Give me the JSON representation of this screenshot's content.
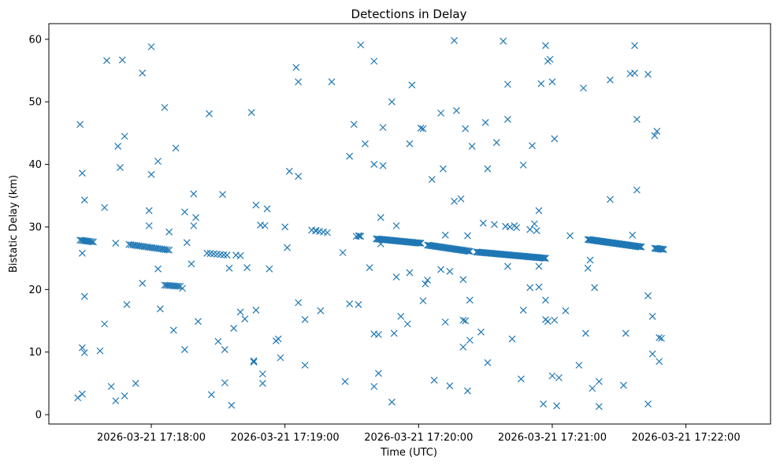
{
  "chart_data": {
    "type": "scatter",
    "title": "Detections in Delay",
    "xlabel": "Time (UTC)",
    "ylabel": "Bistatic Delay (km)",
    "x_ticks": [
      "2026-03-21 17:18:00",
      "2026-03-21 17:19:00",
      "2026-03-21 17:20:00",
      "2026-03-21 17:21:00",
      "2026-03-21 17:22:00"
    ],
    "y_ticks": [
      0,
      10,
      20,
      30,
      40,
      50,
      60
    ],
    "xlim": [
      "2026-03-21 17:17:14",
      "2026-03-21 17:22:38"
    ],
    "ylim": [
      -1.5,
      62.5
    ],
    "grid": false,
    "marker": "x",
    "color": "#1f77b4",
    "series": [
      {
        "points": [
          [
            "2026-03-21 17:17:27",
            2.7
          ],
          [
            "2026-03-21 17:17:29",
            3.3
          ],
          [
            "2026-03-21 17:17:29",
            10.7
          ],
          [
            "2026-03-21 17:17:30",
            9.9
          ],
          [
            "2026-03-21 17:17:30",
            18.9
          ],
          [
            "2026-03-21 17:17:29",
            25.8
          ],
          [
            "2026-03-21 17:17:30",
            34.3
          ],
          [
            "2026-03-21 17:17:29",
            38.6
          ],
          [
            "2026-03-21 17:17:28",
            46.4
          ],
          [
            "2026-03-21 17:17:37",
            10.2
          ],
          [
            "2026-03-21 17:17:39",
            14.5
          ],
          [
            "2026-03-21 17:17:39",
            33.1
          ],
          [
            "2026-03-21 17:17:40",
            56.6
          ],
          [
            "2026-03-21 17:17:42",
            4.5
          ],
          [
            "2026-03-21 17:17:44",
            2.2
          ],
          [
            "2026-03-21 17:17:44",
            27.4
          ],
          [
            "2026-03-21 17:17:45",
            42.9
          ],
          [
            "2026-03-21 17:17:46",
            39.5
          ],
          [
            "2026-03-21 17:17:47",
            56.7
          ],
          [
            "2026-03-21 17:17:48",
            44.5
          ],
          [
            "2026-03-21 17:17:48",
            3.0
          ],
          [
            "2026-03-21 17:17:49",
            17.6
          ],
          [
            "2026-03-21 17:17:53",
            5.0
          ],
          [
            "2026-03-21 17:17:56",
            21.0
          ],
          [
            "2026-03-21 17:17:56",
            54.6
          ],
          [
            "2026-03-21 17:17:59",
            32.6
          ],
          [
            "2026-03-21 17:17:59",
            30.2
          ],
          [
            "2026-03-21 17:18:00",
            38.4
          ],
          [
            "2026-03-21 17:18:00",
            58.8
          ],
          [
            "2026-03-21 17:18:03",
            23.3
          ],
          [
            "2026-03-21 17:18:03",
            40.5
          ],
          [
            "2026-03-21 17:18:04",
            16.9
          ],
          [
            "2026-03-21 17:18:06",
            49.1
          ],
          [
            "2026-03-21 17:18:08",
            29.2
          ],
          [
            "2026-03-21 17:18:10",
            13.5
          ],
          [
            "2026-03-21 17:18:11",
            42.6
          ],
          [
            "2026-03-21 17:18:14",
            20.2
          ],
          [
            "2026-03-21 17:18:15",
            32.4
          ],
          [
            "2026-03-21 17:18:15",
            10.4
          ],
          [
            "2026-03-21 17:18:16",
            27.5
          ],
          [
            "2026-03-21 17:18:18",
            24.1
          ],
          [
            "2026-03-21 17:18:19",
            35.3
          ],
          [
            "2026-03-21 17:18:19",
            30.2
          ],
          [
            "2026-03-21 17:18:20",
            31.5
          ],
          [
            "2026-03-21 17:18:21",
            14.9
          ],
          [
            "2026-03-21 17:18:26",
            48.1
          ],
          [
            "2026-03-21 17:18:27",
            3.2
          ],
          [
            "2026-03-21 17:18:30",
            11.7
          ],
          [
            "2026-03-21 17:18:32",
            35.2
          ],
          [
            "2026-03-21 17:18:33",
            10.4
          ],
          [
            "2026-03-21 17:18:33",
            5.1
          ],
          [
            "2026-03-21 17:18:35",
            23.4
          ],
          [
            "2026-03-21 17:18:36",
            1.5
          ],
          [
            "2026-03-21 17:18:37",
            13.8
          ],
          [
            "2026-03-21 17:18:40",
            16.4
          ],
          [
            "2026-03-21 17:18:42",
            15.3
          ],
          [
            "2026-03-21 17:18:43",
            23.5
          ],
          [
            "2026-03-21 17:18:45",
            48.3
          ],
          [
            "2026-03-21 17:18:46",
            8.6
          ],
          [
            "2026-03-21 17:18:46",
            8.4
          ],
          [
            "2026-03-21 17:18:47",
            16.7
          ],
          [
            "2026-03-21 17:18:47",
            33.5
          ],
          [
            "2026-03-21 17:18:49",
            30.3
          ],
          [
            "2026-03-21 17:18:50",
            5.0
          ],
          [
            "2026-03-21 17:18:50",
            6.5
          ],
          [
            "2026-03-21 17:18:51",
            30.2
          ],
          [
            "2026-03-21 17:18:52",
            32.9
          ],
          [
            "2026-03-21 17:18:53",
            23.3
          ],
          [
            "2026-03-21 17:18:56",
            11.8
          ],
          [
            "2026-03-21 17:18:57",
            12.1
          ],
          [
            "2026-03-21 17:18:58",
            9.1
          ],
          [
            "2026-03-21 17:19:00",
            30.0
          ],
          [
            "2026-03-21 17:19:01",
            26.7
          ],
          [
            "2026-03-21 17:19:02",
            38.9
          ],
          [
            "2026-03-21 17:19:05",
            55.5
          ],
          [
            "2026-03-21 17:19:06",
            53.2
          ],
          [
            "2026-03-21 17:19:06",
            17.9
          ],
          [
            "2026-03-21 17:19:06",
            38.1
          ],
          [
            "2026-03-21 17:19:09",
            7.9
          ],
          [
            "2026-03-21 17:19:09",
            15.2
          ],
          [
            "2026-03-21 17:19:14",
            29.4
          ],
          [
            "2026-03-21 17:19:16",
            16.6
          ],
          [
            "2026-03-21 17:19:21",
            53.2
          ],
          [
            "2026-03-21 17:19:26",
            25.9
          ],
          [
            "2026-03-21 17:19:27",
            5.3
          ],
          [
            "2026-03-21 17:19:29",
            41.3
          ],
          [
            "2026-03-21 17:19:29",
            17.7
          ],
          [
            "2026-03-21 17:19:31",
            46.4
          ],
          [
            "2026-03-21 17:19:32",
            28.5
          ],
          [
            "2026-03-21 17:19:33",
            17.6
          ],
          [
            "2026-03-21 17:19:34",
            59.1
          ],
          [
            "2026-03-21 17:19:36",
            43.3
          ],
          [
            "2026-03-21 17:19:38",
            23.5
          ],
          [
            "2026-03-21 17:19:40",
            40.0
          ],
          [
            "2026-03-21 17:19:40",
            4.5
          ],
          [
            "2026-03-21 17:19:40",
            56.5
          ],
          [
            "2026-03-21 17:19:40",
            12.9
          ],
          [
            "2026-03-21 17:19:42",
            12.8
          ],
          [
            "2026-03-21 17:19:42",
            6.6
          ],
          [
            "2026-03-21 17:19:43",
            31.5
          ],
          [
            "2026-03-21 17:19:43",
            27.3
          ],
          [
            "2026-03-21 17:19:44",
            39.8
          ],
          [
            "2026-03-21 17:19:44",
            45.9
          ],
          [
            "2026-03-21 17:19:48",
            2.0
          ],
          [
            "2026-03-21 17:19:48",
            50.0
          ],
          [
            "2026-03-21 17:19:49",
            13.0
          ],
          [
            "2026-03-21 17:19:50",
            22.0
          ],
          [
            "2026-03-21 17:19:50",
            30.2
          ],
          [
            "2026-03-21 17:19:52",
            15.7
          ],
          [
            "2026-03-21 17:19:55",
            14.5
          ],
          [
            "2026-03-21 17:19:56",
            43.3
          ],
          [
            "2026-03-21 17:19:56",
            22.7
          ],
          [
            "2026-03-21 17:19:57",
            52.7
          ],
          [
            "2026-03-21 17:20:01",
            45.8
          ],
          [
            "2026-03-21 17:20:02",
            45.7
          ],
          [
            "2026-03-21 17:20:02",
            18.2
          ],
          [
            "2026-03-21 17:20:03",
            20.9
          ],
          [
            "2026-03-21 17:20:04",
            21.5
          ],
          [
            "2026-03-21 17:20:06",
            37.6
          ],
          [
            "2026-03-21 17:20:07",
            5.5
          ],
          [
            "2026-03-21 17:20:10",
            48.2
          ],
          [
            "2026-03-21 17:20:10",
            23.2
          ],
          [
            "2026-03-21 17:20:11",
            39.3
          ],
          [
            "2026-03-21 17:20:12",
            14.8
          ],
          [
            "2026-03-21 17:20:12",
            28.7
          ],
          [
            "2026-03-21 17:20:14",
            22.9
          ],
          [
            "2026-03-21 17:20:14",
            4.6
          ],
          [
            "2026-03-21 17:20:16",
            59.8
          ],
          [
            "2026-03-21 17:20:16",
            34.1
          ],
          [
            "2026-03-21 17:20:17",
            48.6
          ],
          [
            "2026-03-21 17:20:19",
            34.5
          ],
          [
            "2026-03-21 17:20:20",
            21.6
          ],
          [
            "2026-03-21 17:20:20",
            15.1
          ],
          [
            "2026-03-21 17:20:20",
            10.8
          ],
          [
            "2026-03-21 17:20:21",
            15.0
          ],
          [
            "2026-03-21 17:20:21",
            45.7
          ],
          [
            "2026-03-21 17:20:22",
            3.8
          ],
          [
            "2026-03-21 17:20:22",
            28.6
          ],
          [
            "2026-03-21 17:20:23",
            11.9
          ],
          [
            "2026-03-21 17:20:23",
            18.3
          ],
          [
            "2026-03-21 17:20:24",
            42.9
          ],
          [
            "2026-03-21 17:20:28",
            13.2
          ],
          [
            "2026-03-21 17:20:29",
            30.6
          ],
          [
            "2026-03-21 17:20:30",
            46.7
          ],
          [
            "2026-03-21 17:20:31",
            39.3
          ],
          [
            "2026-03-21 17:20:31",
            8.3
          ],
          [
            "2026-03-21 17:20:34",
            30.4
          ],
          [
            "2026-03-21 17:20:35",
            43.5
          ],
          [
            "2026-03-21 17:20:38",
            59.7
          ],
          [
            "2026-03-21 17:20:39",
            30.1
          ],
          [
            "2026-03-21 17:20:40",
            47.2
          ],
          [
            "2026-03-21 17:20:40",
            52.8
          ],
          [
            "2026-03-21 17:20:40",
            23.7
          ],
          [
            "2026-03-21 17:20:41",
            30.0
          ],
          [
            "2026-03-21 17:20:42",
            12.1
          ],
          [
            "2026-03-21 17:20:43",
            30.2
          ],
          [
            "2026-03-21 17:20:44",
            29.9
          ],
          [
            "2026-03-21 17:20:46",
            5.7
          ],
          [
            "2026-03-21 17:20:47",
            16.7
          ],
          [
            "2026-03-21 17:20:47",
            39.9
          ],
          [
            "2026-03-21 17:20:50",
            20.3
          ],
          [
            "2026-03-21 17:20:50",
            29.6
          ],
          [
            "2026-03-21 17:20:51",
            43.0
          ],
          [
            "2026-03-21 17:20:52",
            30.5
          ],
          [
            "2026-03-21 17:20:53",
            29.4
          ],
          [
            "2026-03-21 17:20:54",
            20.4
          ],
          [
            "2026-03-21 17:20:54",
            32.6
          ],
          [
            "2026-03-21 17:20:54",
            23.7
          ],
          [
            "2026-03-21 17:20:55",
            52.9
          ],
          [
            "2026-03-21 17:20:56",
            1.7
          ],
          [
            "2026-03-21 17:20:57",
            59.0
          ],
          [
            "2026-03-21 17:20:57",
            18.3
          ],
          [
            "2026-03-21 17:20:57",
            15.2
          ],
          [
            "2026-03-21 17:20:58",
            14.9
          ],
          [
            "2026-03-21 17:20:58",
            56.5
          ],
          [
            "2026-03-21 17:20:59",
            56.8
          ],
          [
            "2026-03-21 17:21:00",
            6.2
          ],
          [
            "2026-03-21 17:21:00",
            53.2
          ],
          [
            "2026-03-21 17:21:01",
            15.1
          ],
          [
            "2026-03-21 17:21:01",
            44.1
          ],
          [
            "2026-03-21 17:21:02",
            1.4
          ],
          [
            "2026-03-21 17:21:03",
            5.9
          ],
          [
            "2026-03-21 17:21:06",
            16.6
          ],
          [
            "2026-03-21 17:21:08",
            28.6
          ],
          [
            "2026-03-21 17:21:12",
            7.9
          ],
          [
            "2026-03-21 17:21:14",
            52.2
          ],
          [
            "2026-03-21 17:21:15",
            13.0
          ],
          [
            "2026-03-21 17:21:16",
            23.4
          ],
          [
            "2026-03-21 17:21:17",
            24.7
          ],
          [
            "2026-03-21 17:21:18",
            4.2
          ],
          [
            "2026-03-21 17:21:19",
            20.3
          ],
          [
            "2026-03-21 17:21:21",
            1.3
          ],
          [
            "2026-03-21 17:21:21",
            5.3
          ],
          [
            "2026-03-21 17:21:26",
            53.5
          ],
          [
            "2026-03-21 17:21:26",
            34.4
          ],
          [
            "2026-03-21 17:21:32",
            4.7
          ],
          [
            "2026-03-21 17:21:33",
            13.0
          ],
          [
            "2026-03-21 17:21:35",
            54.5
          ],
          [
            "2026-03-21 17:21:36",
            28.7
          ],
          [
            "2026-03-21 17:21:37",
            59.0
          ],
          [
            "2026-03-21 17:21:37",
            54.6
          ],
          [
            "2026-03-21 17:21:38",
            47.2
          ],
          [
            "2026-03-21 17:21:38",
            35.9
          ],
          [
            "2026-03-21 17:21:43",
            54.4
          ],
          [
            "2026-03-21 17:21:43",
            1.7
          ],
          [
            "2026-03-21 17:21:43",
            19.0
          ],
          [
            "2026-03-21 17:21:45",
            9.7
          ],
          [
            "2026-03-21 17:21:45",
            15.7
          ],
          [
            "2026-03-21 17:21:46",
            44.6
          ],
          [
            "2026-03-21 17:21:47",
            45.3
          ],
          [
            "2026-03-21 17:21:48",
            12.3
          ],
          [
            "2026-03-21 17:21:48",
            8.5
          ],
          [
            "2026-03-21 17:21:49",
            12.2
          ]
        ],
        "tracks": [
          {
            "t_start": "2026-03-21 17:17:28",
            "t_end": "2026-03-21 17:17:34",
            "y_start": 27.9,
            "y_end": 27.6,
            "count": 10
          },
          {
            "t_start": "2026-03-21 17:17:50",
            "t_end": "2026-03-21 17:18:08",
            "y_start": 27.2,
            "y_end": 26.3,
            "count": 22
          },
          {
            "t_start": "2026-03-21 17:18:06",
            "t_end": "2026-03-21 17:18:13",
            "y_start": 20.7,
            "y_end": 20.5,
            "count": 10
          },
          {
            "t_start": "2026-03-21 17:18:25",
            "t_end": "2026-03-21 17:18:34",
            "y_start": 25.8,
            "y_end": 25.5,
            "count": 7
          },
          {
            "t_start": "2026-03-21 17:18:38",
            "t_end": "2026-03-21 17:18:40",
            "y_start": 25.5,
            "y_end": 25.4,
            "count": 2
          },
          {
            "t_start": "2026-03-21 17:19:12",
            "t_end": "2026-03-21 17:19:19",
            "y_start": 29.5,
            "y_end": 29.1,
            "count": 5
          },
          {
            "t_start": "2026-03-21 17:19:33",
            "t_end": "2026-03-21 17:19:34",
            "y_start": 28.6,
            "y_end": 28.5,
            "count": 3
          },
          {
            "t_start": "2026-03-21 17:19:41",
            "t_end": "2026-03-21 17:20:01",
            "y_start": 28.1,
            "y_end": 27.4,
            "count": 40
          },
          {
            "t_start": "2026-03-21 17:20:04",
            "t_end": "2026-03-21 17:20:23",
            "y_start": 27.1,
            "y_end": 26.1,
            "count": 36
          },
          {
            "t_start": "2026-03-21 17:20:26",
            "t_end": "2026-03-21 17:20:57",
            "y_start": 26.0,
            "y_end": 25.0,
            "count": 60
          },
          {
            "t_start": "2026-03-21 17:21:16",
            "t_end": "2026-03-21 17:21:40",
            "y_start": 28.0,
            "y_end": 26.8,
            "count": 52
          },
          {
            "t_start": "2026-03-21 17:21:46",
            "t_end": "2026-03-21 17:21:50",
            "y_start": 26.6,
            "y_end": 26.4,
            "count": 9
          }
        ]
      }
    ]
  }
}
